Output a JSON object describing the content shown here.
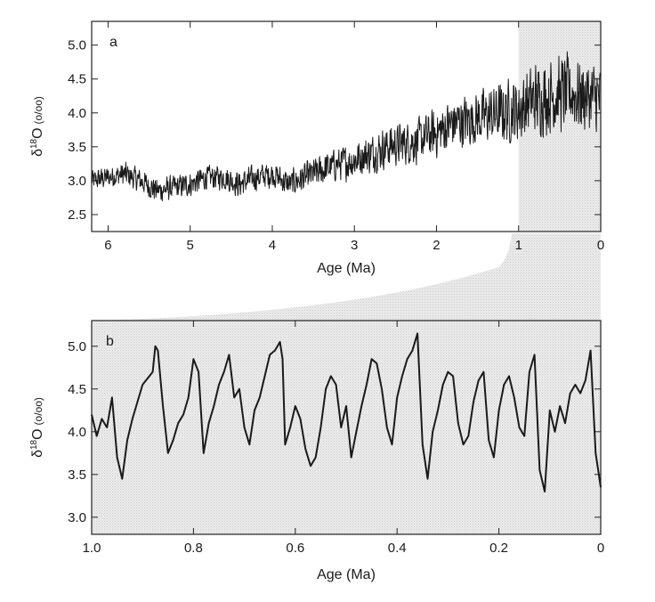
{
  "chart_data": [
    {
      "panel": "a",
      "type": "line",
      "xlabel": "Age (Ma)",
      "ylabel_main": "δ",
      "ylabel_sup": "18",
      "ylabel_rest": "O",
      "ylabel_unit": "(o/oo)",
      "xlim": [
        6.2,
        0
      ],
      "ylim": [
        2.25,
        5.35
      ],
      "x_ticks": [
        6,
        5,
        4,
        3,
        2,
        1,
        0
      ],
      "x_tick_labels": [
        "6",
        "5",
        "4",
        "3",
        "2",
        "1",
        "0"
      ],
      "y_ticks": [
        2.5,
        3.0,
        3.5,
        4.0,
        4.5,
        5.0
      ],
      "y_tick_labels": [
        "2.5",
        "3.0",
        "3.5",
        "4.0",
        "4.5",
        "5.0"
      ],
      "highlight_region": [
        1.0,
        0
      ],
      "series": [
        {
          "x": [
            6.2,
            6.0,
            5.8,
            5.6,
            5.4,
            5.2,
            5.0,
            4.8,
            4.6,
            4.4,
            4.2,
            4.0,
            3.8,
            3.6,
            3.4,
            3.2,
            3.0,
            2.8,
            2.6,
            2.4,
            2.2,
            2.0,
            1.8,
            1.6,
            1.4,
            1.2,
            1.0,
            0.8,
            0.6,
            0.4,
            0.2,
            0.0
          ],
          "values": [
            3.0,
            3.05,
            3.1,
            3.0,
            2.85,
            2.9,
            2.95,
            3.05,
            3.05,
            2.95,
            3.05,
            3.1,
            2.95,
            3.05,
            3.15,
            3.25,
            3.3,
            3.4,
            3.5,
            3.55,
            3.6,
            3.7,
            3.85,
            3.9,
            3.95,
            4.0,
            4.05,
            4.2,
            4.25,
            4.3,
            4.25,
            4.2
          ],
          "variability": [
            0.18,
            0.18,
            0.2,
            0.2,
            0.2,
            0.2,
            0.2,
            0.2,
            0.2,
            0.22,
            0.22,
            0.22,
            0.22,
            0.24,
            0.26,
            0.28,
            0.3,
            0.32,
            0.34,
            0.36,
            0.38,
            0.4,
            0.42,
            0.44,
            0.46,
            0.5,
            0.55,
            0.6,
            0.62,
            0.62,
            0.6,
            0.6
          ]
        }
      ]
    },
    {
      "panel": "b",
      "type": "line",
      "xlabel": "Age (Ma)",
      "ylabel_main": "δ",
      "ylabel_sup": "18",
      "ylabel_rest": "O",
      "ylabel_unit": "(o/oo)",
      "xlim": [
        1.0,
        0
      ],
      "ylim": [
        2.8,
        5.3
      ],
      "x_ticks": [
        1.0,
        0.8,
        0.6,
        0.4,
        0.2,
        0
      ],
      "x_tick_labels": [
        "1.0",
        "0.8",
        "0.6",
        "0.4",
        "0.2",
        "0"
      ],
      "y_ticks": [
        3.0,
        3.5,
        4.0,
        4.5,
        5.0
      ],
      "y_tick_labels": [
        "3.0",
        "3.5",
        "4.0",
        "4.5",
        "5.0"
      ],
      "series": [
        {
          "x": [
            1.0,
            0.99,
            0.98,
            0.97,
            0.96,
            0.95,
            0.94,
            0.93,
            0.92,
            0.9,
            0.88,
            0.875,
            0.87,
            0.86,
            0.85,
            0.84,
            0.83,
            0.82,
            0.81,
            0.8,
            0.79,
            0.78,
            0.77,
            0.76,
            0.75,
            0.74,
            0.73,
            0.72,
            0.71,
            0.7,
            0.69,
            0.68,
            0.67,
            0.66,
            0.65,
            0.64,
            0.63,
            0.625,
            0.62,
            0.61,
            0.6,
            0.59,
            0.58,
            0.57,
            0.56,
            0.55,
            0.54,
            0.53,
            0.52,
            0.51,
            0.5,
            0.49,
            0.48,
            0.47,
            0.46,
            0.45,
            0.44,
            0.43,
            0.42,
            0.41,
            0.4,
            0.39,
            0.38,
            0.37,
            0.36,
            0.35,
            0.34,
            0.33,
            0.32,
            0.31,
            0.3,
            0.29,
            0.28,
            0.27,
            0.26,
            0.25,
            0.24,
            0.23,
            0.22,
            0.21,
            0.2,
            0.19,
            0.18,
            0.17,
            0.16,
            0.15,
            0.14,
            0.13,
            0.12,
            0.11,
            0.1,
            0.09,
            0.08,
            0.07,
            0.06,
            0.05,
            0.04,
            0.03,
            0.02,
            0.01,
            0.0
          ],
          "values": [
            4.2,
            3.95,
            4.15,
            4.05,
            4.4,
            3.7,
            3.45,
            3.9,
            4.15,
            4.55,
            4.7,
            5.0,
            4.95,
            4.3,
            3.75,
            3.9,
            4.1,
            4.2,
            4.4,
            4.85,
            4.7,
            3.75,
            4.1,
            4.3,
            4.55,
            4.7,
            4.9,
            4.4,
            4.5,
            4.05,
            3.85,
            4.25,
            4.4,
            4.65,
            4.9,
            4.95,
            5.05,
            4.85,
            3.85,
            4.05,
            4.3,
            4.15,
            3.8,
            3.6,
            3.7,
            4.05,
            4.5,
            4.65,
            4.55,
            4.05,
            4.3,
            3.7,
            4.0,
            4.3,
            4.55,
            4.85,
            4.8,
            4.5,
            4.05,
            3.85,
            4.4,
            4.65,
            4.85,
            4.95,
            5.15,
            3.85,
            3.45,
            4.0,
            4.25,
            4.55,
            4.7,
            4.65,
            4.1,
            3.85,
            3.95,
            4.35,
            4.6,
            4.7,
            3.9,
            3.7,
            4.25,
            4.55,
            4.65,
            4.4,
            4.05,
            3.95,
            4.7,
            4.9,
            3.55,
            3.3,
            4.25,
            4.0,
            4.3,
            4.1,
            4.45,
            4.55,
            4.45,
            4.6,
            4.95,
            3.75,
            3.35
          ]
        }
      ]
    }
  ],
  "panel_a_letter": "a",
  "panel_b_letter": "b"
}
